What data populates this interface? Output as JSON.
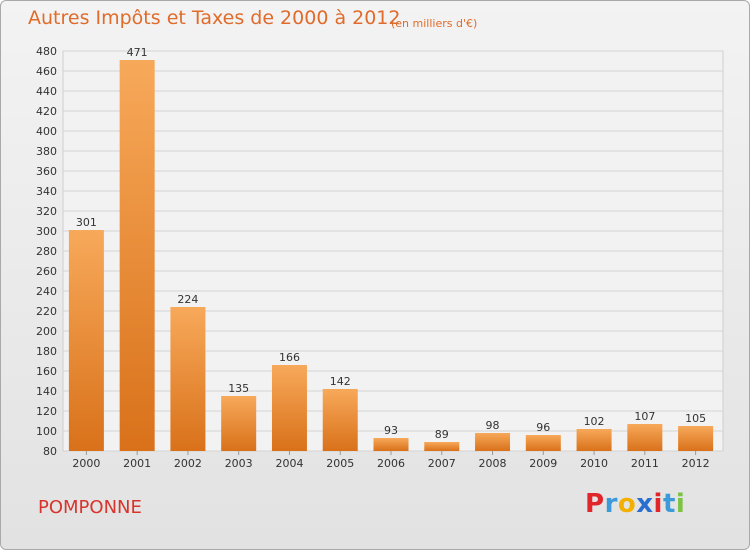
{
  "header": {
    "title": "Autres Impôts et Taxes de 2000 à 2012",
    "unit": "(en milliers d'€)"
  },
  "footer": {
    "commune": "POMPONNE",
    "logo": {
      "letters": [
        "P",
        "r",
        "o",
        "x",
        "i",
        "t",
        "i"
      ],
      "colors": [
        "#e0262a",
        "#3c9ad9",
        "#f2b100",
        "#2a6fd0",
        "#e0262a",
        "#3c9ad9",
        "#7cc243"
      ]
    }
  },
  "colors": {
    "bar_light": "#f7a95a",
    "bar_dark": "#d9711a",
    "title": "#e06b2a",
    "commune": "#d9342b"
  },
  "chart_data": {
    "type": "bar",
    "categories": [
      "2000",
      "2001",
      "2002",
      "2003",
      "2004",
      "2005",
      "2006",
      "2007",
      "2008",
      "2009",
      "2010",
      "2011",
      "2012"
    ],
    "values": [
      301,
      471,
      224,
      135,
      166,
      142,
      93,
      89,
      98,
      96,
      102,
      107,
      105
    ],
    "ylim": [
      80,
      480
    ],
    "yticks": [
      80,
      100,
      120,
      140,
      160,
      180,
      200,
      220,
      240,
      260,
      280,
      300,
      320,
      340,
      360,
      380,
      400,
      420,
      440,
      460,
      480
    ],
    "grid": true
  }
}
